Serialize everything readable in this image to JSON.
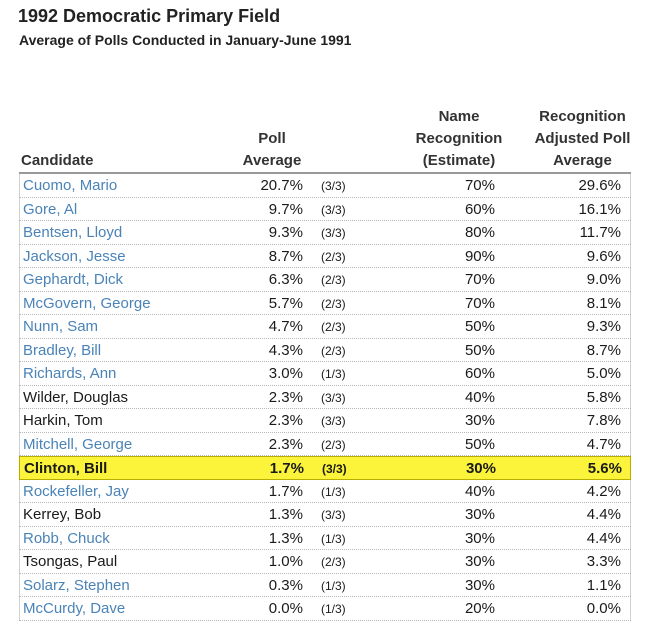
{
  "title": "1992 Democratic Primary Field",
  "subtitle": "Average of Polls Conducted in January-June 1991",
  "headers": {
    "candidate": "Candidate",
    "poll_average": [
      "Poll",
      "Average"
    ],
    "name_recognition": [
      "Name",
      "Recognition",
      "(Estimate)"
    ],
    "adjusted": [
      "Recognition",
      "Adjusted Poll",
      "Average"
    ]
  },
  "colors": {
    "link_blue": "#4a83b8",
    "highlight": "#fbf43a"
  },
  "rows": [
    {
      "name": "Cuomo, Mario",
      "avg": "20.7%",
      "count": "(3/3)",
      "recog": "70%",
      "adj": "29.6%",
      "linked": true
    },
    {
      "name": "Gore, Al",
      "avg": "9.7%",
      "count": "(3/3)",
      "recog": "60%",
      "adj": "16.1%",
      "linked": true
    },
    {
      "name": "Bentsen, Lloyd",
      "avg": "9.3%",
      "count": "(3/3)",
      "recog": "80%",
      "adj": "11.7%",
      "linked": true
    },
    {
      "name": "Jackson, Jesse",
      "avg": "8.7%",
      "count": "(2/3)",
      "recog": "90%",
      "adj": "9.6%",
      "linked": true
    },
    {
      "name": "Gephardt, Dick",
      "avg": "6.3%",
      "count": "(2/3)",
      "recog": "70%",
      "adj": "9.0%",
      "linked": true
    },
    {
      "name": "McGovern, George",
      "avg": "5.7%",
      "count": "(2/3)",
      "recog": "70%",
      "adj": "8.1%",
      "linked": true
    },
    {
      "name": "Nunn, Sam",
      "avg": "4.7%",
      "count": "(2/3)",
      "recog": "50%",
      "adj": "9.3%",
      "linked": true
    },
    {
      "name": "Bradley, Bill",
      "avg": "4.3%",
      "count": "(2/3)",
      "recog": "50%",
      "adj": "8.7%",
      "linked": true
    },
    {
      "name": "Richards, Ann",
      "avg": "3.0%",
      "count": "(1/3)",
      "recog": "60%",
      "adj": "5.0%",
      "linked": true
    },
    {
      "name": "Wilder, Douglas",
      "avg": "2.3%",
      "count": "(3/3)",
      "recog": "40%",
      "adj": "5.8%",
      "linked": false
    },
    {
      "name": "Harkin, Tom",
      "avg": "2.3%",
      "count": "(3/3)",
      "recog": "30%",
      "adj": "7.8%",
      "linked": false
    },
    {
      "name": "Mitchell, George",
      "avg": "2.3%",
      "count": "(2/3)",
      "recog": "50%",
      "adj": "4.7%",
      "linked": true
    },
    {
      "name": "Clinton, Bill",
      "avg": "1.7%",
      "count": "(3/3)",
      "recog": "30%",
      "adj": "5.6%",
      "linked": false,
      "highlight": true
    },
    {
      "name": "Rockefeller, Jay",
      "avg": "1.7%",
      "count": "(1/3)",
      "recog": "40%",
      "adj": "4.2%",
      "linked": true
    },
    {
      "name": "Kerrey, Bob",
      "avg": "1.3%",
      "count": "(3/3)",
      "recog": "30%",
      "adj": "4.4%",
      "linked": false
    },
    {
      "name": "Robb, Chuck",
      "avg": "1.3%",
      "count": "(1/3)",
      "recog": "30%",
      "adj": "4.4%",
      "linked": true
    },
    {
      "name": "Tsongas, Paul",
      "avg": "1.0%",
      "count": "(2/3)",
      "recog": "30%",
      "adj": "3.3%",
      "linked": false
    },
    {
      "name": "Solarz, Stephen",
      "avg": "0.3%",
      "count": "(1/3)",
      "recog": "30%",
      "adj": "1.1%",
      "linked": true
    },
    {
      "name": "McCurdy, Dave",
      "avg": "0.0%",
      "count": "(1/3)",
      "recog": "20%",
      "adj": "0.0%",
      "linked": true
    }
  ]
}
